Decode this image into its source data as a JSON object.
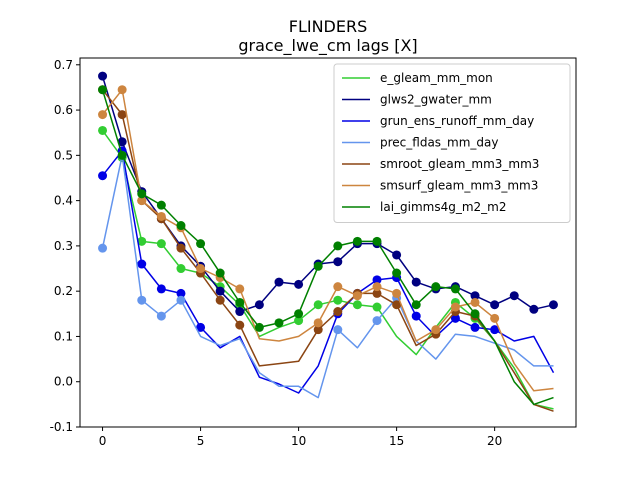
{
  "chart_data": {
    "type": "line",
    "title": "FLINDERS",
    "subtitle": "grace_lwe_cm lags [X]",
    "xlabel": "",
    "ylabel": "",
    "xlim": [
      -1.15,
      24.15
    ],
    "ylim": [
      -0.1,
      0.715
    ],
    "xticks": [
      0,
      5,
      10,
      15,
      20
    ],
    "yticks": [
      -0.1,
      0.0,
      0.1,
      0.2,
      0.3,
      0.4,
      0.5,
      0.6,
      0.7
    ],
    "grid": false,
    "legend_position": "top-right",
    "x": [
      0,
      1,
      2,
      3,
      4,
      5,
      6,
      7,
      8,
      9,
      10,
      11,
      12,
      13,
      14,
      15,
      16,
      17,
      18,
      19,
      20,
      21,
      22,
      23
    ],
    "series": [
      {
        "name": "e_gleam_mm_mon",
        "color": "#32cd32",
        "values": [
          0.555,
          0.495,
          0.31,
          0.305,
          0.25,
          0.24,
          0.21,
          0.17,
          0.1,
          0.12,
          0.135,
          0.17,
          0.18,
          0.17,
          0.165,
          0.1,
          0.06,
          0.12,
          0.175,
          0.14,
          0.09,
          0.03,
          -0.05,
          -0.06
        ],
        "markers": [
          1,
          1,
          1,
          1,
          1,
          1,
          1,
          1,
          0,
          0,
          1,
          1,
          1,
          1,
          1,
          0,
          0,
          0,
          1,
          1,
          0,
          0,
          0,
          0
        ]
      },
      {
        "name": "glws2_gwater_mm",
        "color": "#000080",
        "values": [
          0.675,
          0.53,
          0.42,
          0.36,
          0.3,
          0.255,
          0.2,
          0.155,
          0.17,
          0.22,
          0.215,
          0.26,
          0.265,
          0.305,
          0.305,
          0.28,
          0.22,
          0.205,
          0.21,
          0.19,
          0.17,
          0.19,
          0.16,
          0.17
        ],
        "markers": [
          1,
          1,
          1,
          1,
          1,
          1,
          1,
          1,
          1,
          1,
          1,
          1,
          1,
          1,
          1,
          1,
          1,
          1,
          1,
          1,
          1,
          1,
          1,
          1
        ]
      },
      {
        "name": "grun_ens_runoff_mm_day",
        "color": "#0000e6",
        "values": [
          0.455,
          0.51,
          0.26,
          0.205,
          0.195,
          0.12,
          0.075,
          0.1,
          0.01,
          -0.005,
          -0.025,
          0.035,
          0.15,
          0.195,
          0.225,
          0.23,
          0.145,
          0.1,
          0.14,
          0.12,
          0.115,
          0.09,
          0.1,
          0.02
        ],
        "markers": [
          1,
          1,
          1,
          1,
          1,
          1,
          0,
          0,
          0,
          0,
          0,
          0,
          1,
          1,
          1,
          1,
          1,
          0,
          1,
          1,
          1,
          0,
          0,
          0
        ]
      },
      {
        "name": "prec_fldas_mm_day",
        "color": "#6495ed",
        "values": [
          0.295,
          0.5,
          0.18,
          0.145,
          0.18,
          0.1,
          0.08,
          0.095,
          0.02,
          -0.01,
          -0.01,
          -0.035,
          0.115,
          0.075,
          0.135,
          0.185,
          0.09,
          0.05,
          0.105,
          0.1,
          0.085,
          0.07,
          0.035,
          0.035
        ],
        "markers": [
          1,
          1,
          1,
          1,
          1,
          0,
          0,
          0,
          0,
          0,
          0,
          0,
          1,
          0,
          1,
          1,
          0,
          0,
          0,
          0,
          0,
          0,
          0,
          0
        ]
      },
      {
        "name": "smroot_gleam_mm3_mm3",
        "color": "#8b4513",
        "values": [
          0.645,
          0.59,
          0.4,
          0.36,
          0.295,
          0.24,
          0.18,
          0.125,
          0.035,
          0.04,
          0.045,
          0.115,
          0.155,
          0.195,
          0.195,
          0.17,
          0.08,
          0.105,
          0.155,
          0.145,
          0.09,
          0.02,
          -0.05,
          -0.065
        ],
        "markers": [
          1,
          1,
          1,
          1,
          1,
          1,
          1,
          1,
          0,
          0,
          0,
          1,
          1,
          1,
          1,
          1,
          0,
          1,
          1,
          1,
          0,
          0,
          0,
          0
        ]
      },
      {
        "name": "smsurf_gleam_mm3_mm3",
        "color": "#cd853f",
        "values": [
          0.59,
          0.645,
          0.4,
          0.365,
          0.34,
          0.25,
          0.23,
          0.205,
          0.095,
          0.09,
          0.1,
          0.13,
          0.21,
          0.19,
          0.21,
          0.195,
          0.09,
          0.115,
          0.165,
          0.175,
          0.14,
          0.04,
          -0.02,
          -0.015
        ],
        "markers": [
          1,
          1,
          1,
          1,
          1,
          1,
          1,
          1,
          0,
          0,
          0,
          1,
          1,
          1,
          1,
          1,
          0,
          1,
          1,
          1,
          1,
          0,
          0,
          0
        ]
      },
      {
        "name": "lai_gimms4g_m2_m2",
        "color": "#008000",
        "values": [
          0.645,
          0.5,
          0.415,
          0.39,
          0.345,
          0.305,
          0.24,
          0.175,
          0.12,
          0.13,
          0.15,
          0.255,
          0.3,
          0.31,
          0.31,
          0.24,
          0.17,
          0.21,
          0.205,
          0.15,
          0.09,
          0.0,
          -0.05,
          -0.035
        ],
        "markers": [
          1,
          1,
          1,
          1,
          1,
          1,
          1,
          1,
          1,
          1,
          1,
          1,
          1,
          1,
          1,
          1,
          1,
          1,
          1,
          1,
          0,
          0,
          0,
          0
        ]
      }
    ]
  }
}
